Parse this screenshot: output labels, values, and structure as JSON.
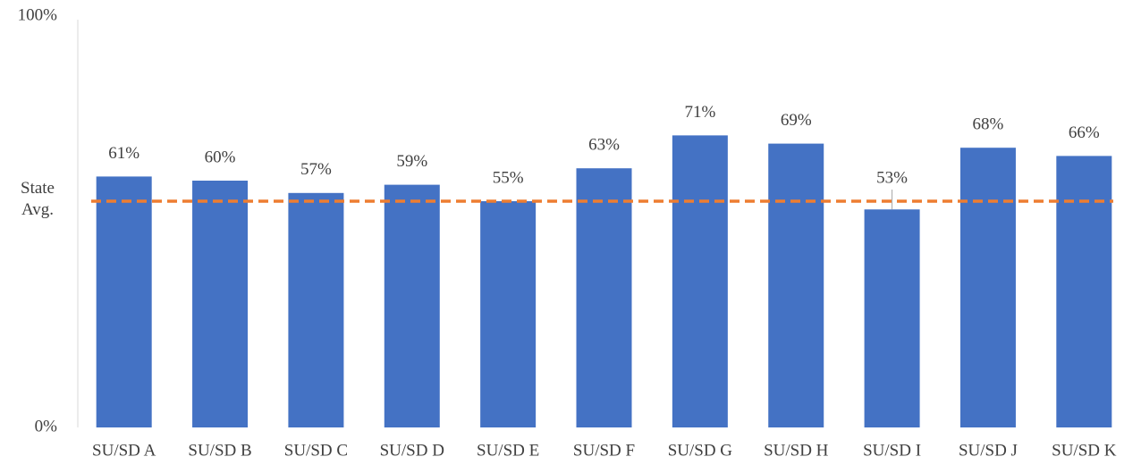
{
  "chart_data": {
    "type": "bar",
    "categories": [
      "SU/SD A",
      "SU/SD B",
      "SU/SD C",
      "SU/SD D",
      "SU/SD E",
      "SU/SD F",
      "SU/SD G",
      "SU/SD H",
      "SU/SD I",
      "SU/SD J",
      "SU/SD K"
    ],
    "values": [
      61,
      60,
      57,
      59,
      55,
      63,
      71,
      69,
      53,
      68,
      66
    ],
    "value_labels": [
      "61%",
      "60%",
      "57%",
      "59%",
      "55%",
      "63%",
      "71%",
      "69%",
      "53%",
      "68%",
      "66%"
    ],
    "color": "#4472c4",
    "ylim": [
      0,
      100
    ],
    "yticks": [
      {
        "value": 0,
        "label": "0%"
      },
      {
        "value": 100,
        "label": "100%"
      }
    ],
    "grid": false,
    "reference_line": {
      "label": "State Avg.",
      "value": 55,
      "color": "#ed7d31"
    }
  }
}
